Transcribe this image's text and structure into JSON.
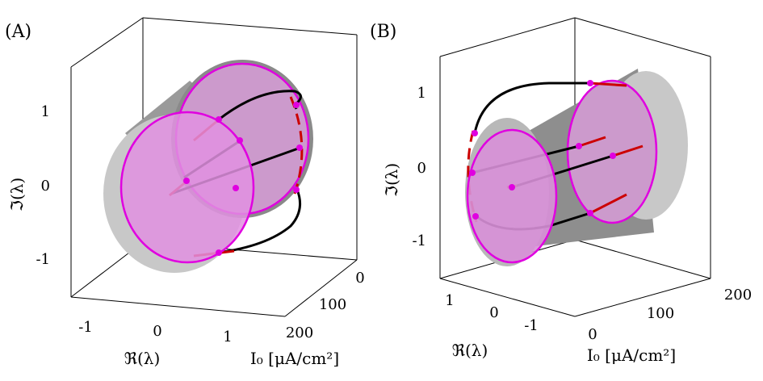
{
  "chart_data": [
    {
      "panel_label": "(A)",
      "type": "3d-surface-with-trajectories",
      "xlabel": "ℜ(λ)",
      "ylabel": "ℑ(λ)",
      "zlabel": "I₀ [μA/cm²]",
      "x_ticks": [
        "-1",
        "0",
        "1"
      ],
      "y_ticks": [
        "-1",
        "0",
        "1"
      ],
      "z_ticks": [
        "0",
        "100",
        "200"
      ],
      "surfaces": [
        {
          "name": "unit-circle cylinder",
          "radius": 1,
          "color": "#b0b0b0"
        }
      ],
      "discs": [
        {
          "at_I0": 200,
          "color": "#e060e0"
        },
        {
          "at_I0": 100,
          "color": "#e060e0"
        }
      ],
      "trajectory_color": "#000000",
      "highlight_color": "#cc0000",
      "marker_color": "#e000e0"
    },
    {
      "panel_label": "(B)",
      "type": "3d-surface-with-trajectories",
      "xlabel": "ℜ(λ)",
      "ylabel": "ℑ(λ)",
      "zlabel": "I₀ [μA/cm²]",
      "x_ticks": [
        "1",
        "0",
        "-1"
      ],
      "y_ticks": [
        "-1",
        "0",
        "1"
      ],
      "z_ticks": [
        "0",
        "100",
        "200"
      ],
      "surfaces": [
        {
          "name": "unit-circle cylinder",
          "radius": 1,
          "color": "#b0b0b0"
        }
      ],
      "discs": [
        {
          "at_I0": 0,
          "color": "#e060e0"
        },
        {
          "at_I0": 100,
          "color": "#e060e0"
        }
      ],
      "trajectory_color": "#000000",
      "highlight_color": "#cc0000",
      "marker_color": "#e000e0"
    }
  ]
}
